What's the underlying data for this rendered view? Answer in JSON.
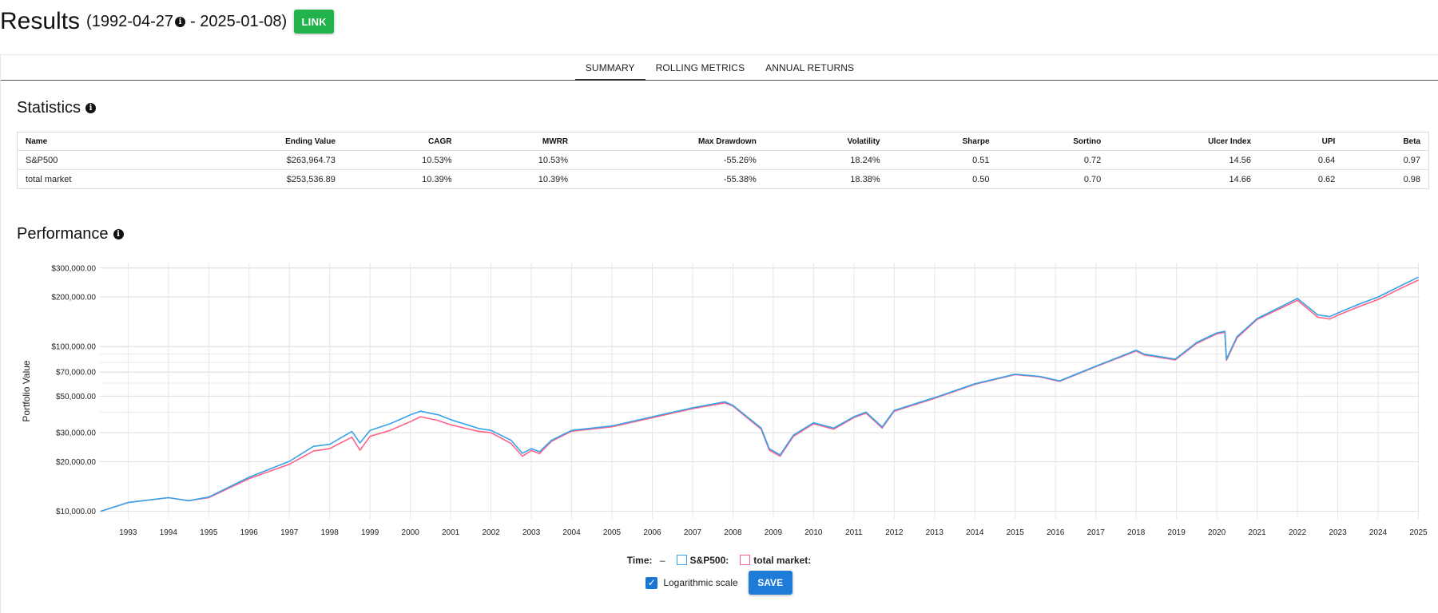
{
  "header": {
    "title": "Results",
    "range_start": "(1992-04-27",
    "range_end": "- 2025-01-08)",
    "link_label": "LINK"
  },
  "tabs": [
    "SUMMARY",
    "ROLLING METRICS",
    "ANNUAL RETURNS"
  ],
  "statistics": {
    "title": "Statistics",
    "columns": [
      "Name",
      "Ending Value",
      "CAGR",
      "MWRR",
      "Max Drawdown",
      "Volatility",
      "Sharpe",
      "Sortino",
      "Ulcer Index",
      "UPI",
      "Beta"
    ],
    "rows": [
      [
        "S&P500",
        "$263,964.73",
        "10.53%",
        "10.53%",
        "-55.26%",
        "18.24%",
        "0.51",
        "0.72",
        "14.56",
        "0.64",
        "0.97"
      ],
      [
        "total market",
        "$253,536.89",
        "10.39%",
        "10.39%",
        "-55.38%",
        "18.38%",
        "0.50",
        "0.70",
        "14.66",
        "0.62",
        "0.98"
      ]
    ]
  },
  "performance": {
    "title": "Performance"
  },
  "chart_data": {
    "type": "line",
    "ylabel": "Portfolio Value",
    "yscale": "log",
    "ylim": [
      9000,
      320000
    ],
    "xlim": [
      1992.3,
      2025.03
    ],
    "y_ticks": [
      "$10,000.00",
      "$20,000.00",
      "$30,000.00",
      "$50,000.00",
      "$70,000.00",
      "$100,000.00",
      "$200,000.00",
      "$300,000.00"
    ],
    "y_tick_values": [
      10000,
      20000,
      30000,
      50000,
      70000,
      100000,
      200000,
      300000
    ],
    "x_ticks": [
      "1993",
      "1994",
      "1995",
      "1996",
      "1997",
      "1998",
      "1999",
      "2000",
      "2001",
      "2002",
      "2003",
      "2004",
      "2005",
      "2006",
      "2007",
      "2008",
      "2009",
      "2010",
      "2011",
      "2012",
      "2013",
      "2014",
      "2015",
      "2016",
      "2017",
      "2018",
      "2019",
      "2020",
      "2021",
      "2022",
      "2023",
      "2024",
      "2025"
    ],
    "grid": true,
    "series": [
      {
        "name": "S&P500",
        "color": "#36a2eb",
        "x": [
          1992.32,
          1993.0,
          1994.0,
          1994.5,
          1995.0,
          1996.0,
          1997.0,
          1997.6,
          1998.0,
          1998.55,
          1998.75,
          1999.0,
          1999.5,
          2000.0,
          2000.25,
          2000.7,
          2001.0,
          2001.7,
          2002.0,
          2002.5,
          2002.78,
          2003.0,
          2003.2,
          2003.5,
          2004.0,
          2005.0,
          2006.0,
          2007.0,
          2007.8,
          2008.0,
          2008.7,
          2008.9,
          2009.17,
          2009.5,
          2010.0,
          2010.5,
          2011.0,
          2011.3,
          2011.7,
          2012.0,
          2013.0,
          2014.0,
          2015.0,
          2015.6,
          2016.1,
          2017.0,
          2018.0,
          2018.2,
          2018.97,
          2019.5,
          2020.0,
          2020.2,
          2020.24,
          2020.5,
          2021.0,
          2022.0,
          2022.5,
          2022.8,
          2023.0,
          2023.5,
          2024.0,
          2024.5,
          2025.0
        ],
        "values": [
          10000,
          11300,
          12100,
          11600,
          12200,
          16100,
          20100,
          24800,
          25500,
          30500,
          26000,
          31000,
          34000,
          38500,
          40500,
          38500,
          36000,
          31800,
          31000,
          27000,
          22500,
          24000,
          23000,
          27000,
          31000,
          33000,
          37500,
          42500,
          46200,
          44000,
          32000,
          24000,
          22000,
          29000,
          34500,
          32000,
          37500,
          40000,
          32500,
          41000,
          49000,
          59500,
          68000,
          66000,
          62000,
          76000,
          95000,
          90000,
          84000,
          106000,
          121000,
          124000,
          84000,
          115000,
          148000,
          196000,
          156000,
          152000,
          160000,
          180000,
          200000,
          230000,
          264000
        ]
      },
      {
        "name": "total market",
        "color": "#ff6384",
        "x": [
          1992.32,
          1993.0,
          1994.0,
          1994.5,
          1995.0,
          1996.0,
          1997.0,
          1997.6,
          1998.0,
          1998.55,
          1998.75,
          1999.0,
          1999.5,
          2000.0,
          2000.25,
          2000.7,
          2001.0,
          2001.7,
          2002.0,
          2002.5,
          2002.78,
          2003.0,
          2003.2,
          2003.5,
          2004.0,
          2005.0,
          2006.0,
          2007.0,
          2007.8,
          2008.0,
          2008.7,
          2008.9,
          2009.17,
          2009.5,
          2010.0,
          2010.5,
          2011.0,
          2011.3,
          2011.7,
          2012.0,
          2013.0,
          2014.0,
          2015.0,
          2015.6,
          2016.1,
          2017.0,
          2018.0,
          2018.2,
          2018.97,
          2019.5,
          2020.0,
          2020.2,
          2020.24,
          2020.5,
          2021.0,
          2022.0,
          2022.5,
          2022.8,
          2023.0,
          2023.5,
          2024.0,
          2024.5,
          2025.0
        ],
        "values": [
          10000,
          11300,
          12100,
          11600,
          12100,
          15800,
          19300,
          23200,
          24000,
          28200,
          23500,
          28500,
          31000,
          35000,
          37500,
          35500,
          33500,
          30500,
          30000,
          25800,
          21600,
          23400,
          22400,
          26600,
          30600,
          32600,
          37000,
          42000,
          45500,
          43500,
          31500,
          23500,
          21600,
          28500,
          34000,
          31500,
          37000,
          39500,
          32000,
          40500,
          48500,
          59000,
          67500,
          65500,
          61500,
          75500,
          94000,
          89000,
          83000,
          104500,
          119500,
          122000,
          82500,
          113000,
          146000,
          191000,
          151000,
          147000,
          155000,
          174000,
          193000,
          222000,
          253500
        ]
      }
    ]
  },
  "controls": {
    "time_label": "Time:",
    "time_value": "–",
    "legend_sp": "S&P500:",
    "legend_tm": "total market:",
    "log_label": "Logarithmic scale",
    "save_label": "SAVE"
  }
}
